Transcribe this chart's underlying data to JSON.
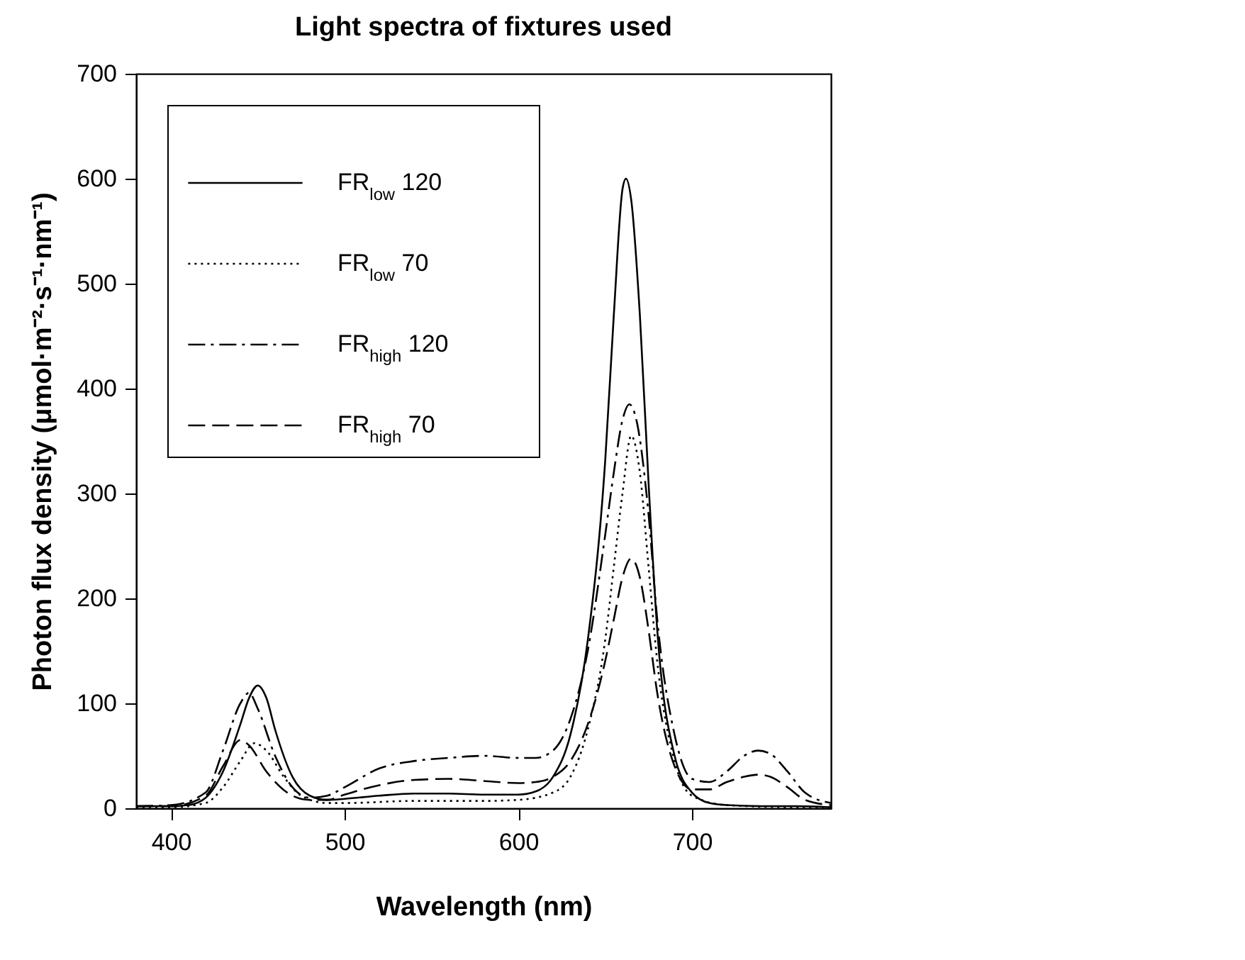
{
  "chart_data": {
    "type": "line",
    "title": "Light spectra of fixtures used",
    "xlabel": "Wavelength (nm)",
    "ylabel": "Photon flux density (μmol·m⁻²·s⁻¹·nm⁻¹)",
    "xlim": [
      380,
      780
    ],
    "xticks": [
      400,
      500,
      600,
      700
    ],
    "ylim": [
      0,
      700
    ],
    "yticks": [
      0,
      100,
      200,
      300,
      400,
      500,
      600,
      700
    ],
    "grid": false,
    "legend": "top left",
    "marker": "none",
    "series": [
      {
        "name": "FR$_{low}$ 120",
        "color": "#000000",
        "line_style": "solid",
        "x": [
          380,
          400,
          410,
          420,
          430,
          440,
          445,
          450,
          455,
          460,
          470,
          480,
          490,
          500,
          520,
          540,
          560,
          580,
          600,
          610,
          620,
          630,
          640,
          650,
          655,
          660,
          662,
          665,
          670,
          675,
          680,
          690,
          700,
          710,
          720,
          740,
          760,
          780
        ],
        "values": [
          2,
          2,
          3,
          10,
          35,
          80,
          105,
          117,
          105,
          75,
          30,
          12,
          8,
          9,
          12,
          14,
          14,
          13,
          13,
          16,
          30,
          70,
          160,
          330,
          470,
          590,
          600,
          580,
          470,
          310,
          170,
          50,
          15,
          5,
          3,
          2,
          2,
          1
        ]
      },
      {
        "name": "FR$_{low}$ 70",
        "color": "#000000",
        "line_style": "dotted",
        "x": [
          380,
          400,
          420,
          430,
          440,
          448,
          455,
          465,
          475,
          490,
          500,
          540,
          580,
          600,
          620,
          630,
          640,
          650,
          655,
          660,
          665,
          670,
          675,
          680,
          690,
          700,
          720,
          760,
          780
        ],
        "values": [
          1,
          1,
          5,
          20,
          45,
          62,
          55,
          30,
          12,
          5,
          5,
          7,
          7,
          8,
          15,
          30,
          75,
          160,
          230,
          300,
          355,
          320,
          230,
          140,
          45,
          12,
          3,
          1,
          1
        ]
      },
      {
        "name": "FR$_{high}$ 120",
        "color": "#000000",
        "line_style": "dashdot",
        "x": [
          380,
          400,
          420,
          430,
          440,
          445,
          450,
          460,
          470,
          480,
          490,
          500,
          520,
          540,
          560,
          580,
          600,
          610,
          620,
          630,
          640,
          650,
          655,
          660,
          664,
          668,
          675,
          680,
          690,
          700,
          710,
          720,
          730,
          738,
          745,
          755,
          765,
          780
        ],
        "values": [
          2,
          3,
          15,
          55,
          100,
          110,
          95,
          50,
          20,
          10,
          12,
          20,
          38,
          45,
          48,
          50,
          48,
          48,
          55,
          85,
          150,
          260,
          320,
          370,
          385,
          370,
          280,
          180,
          70,
          28,
          25,
          35,
          50,
          55,
          52,
          35,
          15,
          5
        ]
      },
      {
        "name": "FR$_{high}$ 70",
        "color": "#000000",
        "line_style": "dashed",
        "x": [
          380,
          400,
          420,
          430,
          440,
          445,
          455,
          470,
          480,
          490,
          500,
          520,
          540,
          560,
          580,
          600,
          610,
          620,
          630,
          640,
          650,
          655,
          660,
          665,
          670,
          675,
          680,
          690,
          700,
          710,
          720,
          730,
          738,
          745,
          755,
          765,
          780
        ],
        "values": [
          2,
          2,
          12,
          40,
          65,
          60,
          35,
          12,
          8,
          8,
          13,
          22,
          27,
          28,
          26,
          24,
          25,
          30,
          45,
          80,
          140,
          180,
          220,
          238,
          220,
          170,
          110,
          40,
          18,
          18,
          25,
          30,
          32,
          30,
          20,
          8,
          3
        ]
      }
    ]
  }
}
